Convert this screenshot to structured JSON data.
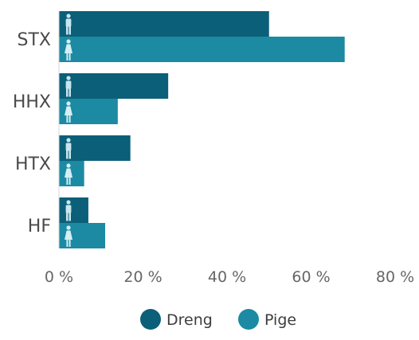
{
  "chart_data": {
    "type": "bar",
    "orientation": "horizontal",
    "categories": [
      "STX",
      "HHX",
      "HTX",
      "HF"
    ],
    "series": [
      {
        "name": "Dreng",
        "values": [
          50,
          26,
          17,
          7
        ],
        "color": "#0b5f78",
        "icon": "male-icon"
      },
      {
        "name": "Pige",
        "values": [
          68,
          14,
          6,
          11
        ],
        "color": "#1b8aa2",
        "icon": "female-icon"
      }
    ],
    "xlim": [
      0,
      80
    ],
    "xticks": [
      0,
      20,
      40,
      60,
      80
    ],
    "tick_suffix": " %",
    "grid": false,
    "legend_position": "bottom"
  }
}
